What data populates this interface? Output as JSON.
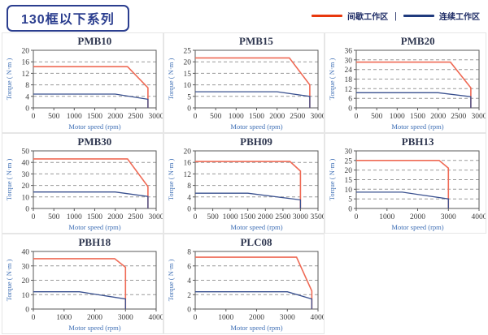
{
  "header": {
    "title": "130框以下系列"
  },
  "legend": {
    "intermittent_label": "间歇工作区",
    "separator": "|",
    "continuous_label": "连续工作区",
    "intermittent_color": "#e8380d",
    "continuous_color": "#1f3a7d"
  },
  "axis": {
    "x_label": "Motor speed (rpm)",
    "y_label": "Torque ( N·m )"
  },
  "colors": {
    "chart_red": "#ef6a55",
    "chart_blue": "#39508f",
    "grid_line": "#9a9a9a",
    "frame": "#5a5a5a",
    "header_navy": "#2b3e8f"
  },
  "chart_data": [
    {
      "type": "line",
      "title": "PMB10",
      "xlabel": "Motor speed (rpm)",
      "ylabel": "Torque ( N·m )",
      "xlim": [
        0,
        3000
      ],
      "ylim": [
        0,
        20
      ],
      "xticks": [
        0,
        500,
        1000,
        1500,
        2000,
        2500,
        3000
      ],
      "yticks": [
        0,
        4,
        8,
        12,
        16,
        20
      ],
      "grid": true,
      "series": [
        {
          "name": "间歇工作区",
          "color": "#ef6a55",
          "width": 1.6,
          "points": [
            [
              0,
              14.3
            ],
            [
              2300,
              14.3
            ],
            [
              2800,
              7
            ],
            [
              2800,
              0
            ]
          ]
        },
        {
          "name": "连续工作区",
          "color": "#39508f",
          "width": 1.3,
          "points": [
            [
              0,
              4.8
            ],
            [
              2000,
              4.8
            ],
            [
              2800,
              3
            ],
            [
              2800,
              0
            ]
          ]
        }
      ]
    },
    {
      "type": "line",
      "title": "PMB15",
      "xlabel": "Motor speed (rpm)",
      "ylabel": "Torque ( N·m )",
      "xlim": [
        0,
        3000
      ],
      "ylim": [
        0,
        25
      ],
      "xticks": [
        0,
        500,
        1000,
        1500,
        2000,
        2500,
        3000
      ],
      "yticks": [
        0,
        5,
        10,
        15,
        20,
        25
      ],
      "grid": true,
      "series": [
        {
          "name": "间歇工作区",
          "color": "#ef6a55",
          "width": 1.6,
          "points": [
            [
              0,
              21.7
            ],
            [
              2300,
              21.7
            ],
            [
              2800,
              10
            ],
            [
              2800,
              0
            ]
          ]
        },
        {
          "name": "连续工作区",
          "color": "#39508f",
          "width": 1.3,
          "points": [
            [
              0,
              7
            ],
            [
              2000,
              7
            ],
            [
              2800,
              5
            ],
            [
              2800,
              0
            ]
          ]
        }
      ]
    },
    {
      "type": "line",
      "title": "PMB20",
      "xlabel": "Motor speed (rpm)",
      "ylabel": "Torque ( N·m )",
      "xlim": [
        0,
        3000
      ],
      "ylim": [
        0,
        36
      ],
      "xticks": [
        0,
        500,
        1000,
        1500,
        2000,
        2500,
        3000
      ],
      "yticks": [
        0,
        6,
        12,
        18,
        24,
        30,
        36
      ],
      "grid": true,
      "series": [
        {
          "name": "间歇工作区",
          "color": "#ef6a55",
          "width": 1.6,
          "points": [
            [
              0,
              28.6
            ],
            [
              2300,
              28.6
            ],
            [
              2800,
              12.5
            ],
            [
              2800,
              0
            ]
          ]
        },
        {
          "name": "连续工作区",
          "color": "#39508f",
          "width": 1.3,
          "points": [
            [
              0,
              9.5
            ],
            [
              2000,
              9.5
            ],
            [
              2800,
              7
            ],
            [
              2800,
              0
            ]
          ]
        }
      ]
    },
    {
      "type": "line",
      "title": "PMB30",
      "xlabel": "Motor speed (rpm)",
      "ylabel": "Torque ( N·m )",
      "xlim": [
        0,
        3000
      ],
      "ylim": [
        0,
        50
      ],
      "xticks": [
        0,
        500,
        1000,
        1500,
        2000,
        2500,
        3000
      ],
      "yticks": [
        0,
        10,
        20,
        30,
        40,
        50
      ],
      "grid": true,
      "series": [
        {
          "name": "间歇工作区",
          "color": "#ef6a55",
          "width": 1.6,
          "points": [
            [
              0,
              43
            ],
            [
              2300,
              43
            ],
            [
              2800,
              19
            ],
            [
              2800,
              0
            ]
          ]
        },
        {
          "name": "连续工作区",
          "color": "#39508f",
          "width": 1.3,
          "points": [
            [
              0,
              14.3
            ],
            [
              2000,
              14.3
            ],
            [
              2800,
              10.4
            ],
            [
              2800,
              0
            ]
          ]
        }
      ]
    },
    {
      "type": "line",
      "title": "PBH09",
      "xlabel": "Motor speed (rpm)",
      "ylabel": "Torque ( N·m )",
      "xlim": [
        0,
        3500
      ],
      "ylim": [
        0,
        20
      ],
      "xticks": [
        0,
        500,
        1000,
        1500,
        2000,
        2500,
        3000,
        3500
      ],
      "yticks": [
        0,
        4,
        8,
        12,
        16,
        20
      ],
      "grid": true,
      "series": [
        {
          "name": "间歇工作区",
          "color": "#ef6a55",
          "width": 1.6,
          "points": [
            [
              0,
              16.3
            ],
            [
              2700,
              16.3
            ],
            [
              3000,
              13
            ],
            [
              3000,
              0
            ]
          ]
        },
        {
          "name": "连续工作区",
          "color": "#39508f",
          "width": 1.3,
          "points": [
            [
              0,
              5.3
            ],
            [
              1500,
              5.3
            ],
            [
              3000,
              3
            ],
            [
              3000,
              0
            ]
          ]
        }
      ]
    },
    {
      "type": "line",
      "title": "PBH13",
      "xlabel": "Motor speed (rpm)",
      "ylabel": "Torque ( N·m )",
      "xlim": [
        0,
        4000
      ],
      "ylim": [
        0,
        30
      ],
      "xticks": [
        0,
        1000,
        2000,
        3000,
        4000
      ],
      "yticks": [
        0,
        5,
        10,
        15,
        20,
        25,
        30
      ],
      "grid": true,
      "series": [
        {
          "name": "间歇工作区",
          "color": "#ef6a55",
          "width": 1.6,
          "points": [
            [
              0,
              25
            ],
            [
              2700,
              25
            ],
            [
              3000,
              21
            ],
            [
              3000,
              0
            ]
          ]
        },
        {
          "name": "连续工作区",
          "color": "#39508f",
          "width": 1.3,
          "points": [
            [
              0,
              8.5
            ],
            [
              1500,
              8.5
            ],
            [
              3000,
              5
            ],
            [
              3000,
              0
            ]
          ]
        }
      ]
    },
    {
      "type": "line",
      "title": "PBH18",
      "xlabel": "Motor speed (rpm)",
      "ylabel": "Torque ( N·m )",
      "xlim": [
        0,
        4000
      ],
      "ylim": [
        0,
        40
      ],
      "xticks": [
        0,
        1000,
        2000,
        3000,
        4000
      ],
      "yticks": [
        0,
        10,
        20,
        30,
        40
      ],
      "grid": true,
      "series": [
        {
          "name": "间歇工作区",
          "color": "#ef6a55",
          "width": 1.6,
          "points": [
            [
              0,
              35
            ],
            [
              2650,
              35
            ],
            [
              3000,
              29
            ],
            [
              3000,
              0
            ]
          ]
        },
        {
          "name": "连续工作区",
          "color": "#39508f",
          "width": 1.3,
          "points": [
            [
              0,
              12
            ],
            [
              1500,
              12
            ],
            [
              3000,
              7
            ],
            [
              3000,
              0
            ]
          ]
        }
      ]
    },
    {
      "type": "line",
      "title": "PLC08",
      "xlabel": "Motor speed (rpm)",
      "ylabel": "Torque ( N·m )",
      "xlim": [
        0,
        4000
      ],
      "ylim": [
        0,
        8
      ],
      "xticks": [
        0,
        1000,
        2000,
        3000,
        4000
      ],
      "yticks": [
        0,
        2,
        4,
        6,
        8
      ],
      "grid": true,
      "series": [
        {
          "name": "间歇工作区",
          "color": "#ef6a55",
          "width": 1.6,
          "points": [
            [
              0,
              7.2
            ],
            [
              3300,
              7.2
            ],
            [
              3800,
              2.5
            ],
            [
              3800,
              0
            ]
          ]
        },
        {
          "name": "连续工作区",
          "color": "#39508f",
          "width": 1.3,
          "points": [
            [
              0,
              2.4
            ],
            [
              3000,
              2.4
            ],
            [
              3800,
              1.4
            ],
            [
              3800,
              0
            ]
          ]
        }
      ]
    }
  ]
}
